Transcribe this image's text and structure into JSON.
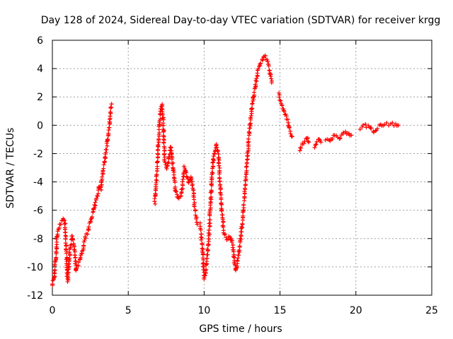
{
  "chart_data": {
    "type": "scatter",
    "title": "Day 128 of 2024, Sidereal Day-to-day VTEC variation (SDTVAR) for receiver krgg",
    "xlabel": "GPS time / hours",
    "ylabel": "SDTVAR / TECUs",
    "xlim": [
      0,
      25
    ],
    "ylim": [
      -12,
      6
    ],
    "xticks": [
      0,
      5,
      10,
      15,
      20,
      25
    ],
    "yticks": [
      -12,
      -10,
      -8,
      -6,
      -4,
      -2,
      0,
      2,
      4,
      6
    ],
    "grid": true,
    "marker": "+",
    "series": [
      {
        "name": "SDTVAR krgg",
        "color": "#ff0000",
        "segments": [
          [
            [
              0.0,
              -11.3
            ],
            [
              0.15,
              -10.5
            ],
            [
              0.3,
              -8.0
            ],
            [
              0.4,
              -7.3
            ],
            [
              0.6,
              -6.8
            ],
            [
              0.75,
              -6.6
            ],
            [
              0.85,
              -7.0
            ],
            [
              0.95,
              -9.5
            ],
            [
              1.0,
              -11.0
            ],
            [
              1.05,
              -10.5
            ],
            [
              1.15,
              -8.8
            ],
            [
              1.3,
              -7.8
            ],
            [
              1.45,
              -8.5
            ],
            [
              1.55,
              -10.2
            ],
            [
              1.65,
              -10.0
            ],
            [
              1.8,
              -9.6
            ],
            [
              1.95,
              -9.0
            ],
            [
              2.05,
              -8.6
            ],
            [
              2.15,
              -8.0
            ],
            [
              2.35,
              -7.5
            ],
            [
              2.45,
              -7.0
            ],
            [
              2.6,
              -6.5
            ],
            [
              2.75,
              -5.8
            ],
            [
              2.9,
              -5.2
            ],
            [
              3.0,
              -4.8
            ],
            [
              3.1,
              -4.3
            ],
            [
              3.2,
              -4.5
            ],
            [
              3.3,
              -3.5
            ],
            [
              3.45,
              -2.5
            ],
            [
              3.55,
              -1.8
            ],
            [
              3.65,
              -1.0
            ],
            [
              3.8,
              0.5
            ],
            [
              3.9,
              1.5
            ]
          ],
          [
            [
              6.75,
              -5.5
            ],
            [
              6.85,
              -4.0
            ],
            [
              7.0,
              -1.0
            ],
            [
              7.1,
              0.8
            ],
            [
              7.2,
              1.5
            ],
            [
              7.3,
              0.3
            ],
            [
              7.4,
              -2.5
            ],
            [
              7.55,
              -3.0
            ],
            [
              7.7,
              -2.2
            ],
            [
              7.8,
              -1.5
            ],
            [
              7.9,
              -2.5
            ],
            [
              8.0,
              -3.5
            ],
            [
              8.1,
              -4.5
            ],
            [
              8.3,
              -5.2
            ],
            [
              8.5,
              -5.0
            ],
            [
              8.6,
              -4.0
            ],
            [
              8.7,
              -3.0
            ],
            [
              8.8,
              -3.3
            ],
            [
              9.0,
              -4.0
            ],
            [
              9.15,
              -3.6
            ],
            [
              9.3,
              -4.8
            ],
            [
              9.4,
              -6.0
            ],
            [
              9.55,
              -7.0
            ]
          ],
          [
            [
              9.75,
              -7.0
            ],
            [
              9.9,
              -9.0
            ],
            [
              10.0,
              -10.8
            ],
            [
              10.1,
              -10.5
            ],
            [
              10.2,
              -9.2
            ],
            [
              10.3,
              -8.2
            ],
            [
              10.4,
              -6.0
            ],
            [
              10.5,
              -4.0
            ],
            [
              10.6,
              -2.5
            ],
            [
              10.7,
              -1.8
            ],
            [
              10.8,
              -1.3
            ],
            [
              10.9,
              -1.8
            ],
            [
              11.0,
              -3.0
            ],
            [
              11.1,
              -5.0
            ],
            [
              11.2,
              -6.5
            ],
            [
              11.3,
              -7.5
            ],
            [
              11.5,
              -8.0
            ],
            [
              11.7,
              -7.8
            ],
            [
              11.9,
              -8.6
            ],
            [
              12.0,
              -9.8
            ],
            [
              12.1,
              -10.3
            ],
            [
              12.2,
              -9.5
            ],
            [
              12.35,
              -8.6
            ],
            [
              12.5,
              -7.0
            ],
            [
              12.65,
              -5.0
            ],
            [
              12.8,
              -3.0
            ],
            [
              12.95,
              -0.8
            ],
            [
              13.1,
              0.8
            ],
            [
              13.25,
              2.0
            ],
            [
              13.4,
              3.0
            ],
            [
              13.55,
              3.8
            ],
            [
              13.7,
              4.3
            ],
            [
              13.85,
              4.7
            ],
            [
              14.0,
              5.0
            ],
            [
              14.15,
              4.6
            ],
            [
              14.3,
              4.0
            ],
            [
              14.45,
              3.0
            ]
          ],
          [
            [
              14.9,
              2.2
            ],
            [
              15.1,
              1.5
            ],
            [
              15.3,
              0.8
            ],
            [
              15.5,
              0.3
            ],
            [
              15.65,
              -0.4
            ],
            [
              15.8,
              -0.8
            ]
          ],
          [
            [
              16.3,
              -1.8
            ],
            [
              16.5,
              -1.3
            ],
            [
              16.8,
              -0.9
            ],
            [
              16.9,
              -1.2
            ]
          ],
          [
            [
              17.3,
              -1.5
            ],
            [
              17.5,
              -1.0
            ],
            [
              17.7,
              -1.2
            ]
          ],
          [
            [
              18.0,
              -1.0
            ],
            [
              18.3,
              -1.2
            ],
            [
              18.6,
              -0.7
            ],
            [
              18.9,
              -0.9
            ],
            [
              19.2,
              -0.6
            ],
            [
              19.5,
              -0.5
            ],
            [
              19.7,
              -0.7
            ]
          ],
          [
            [
              20.3,
              -0.2
            ],
            [
              20.6,
              0.0
            ],
            [
              20.9,
              -0.1
            ],
            [
              21.2,
              -0.4
            ],
            [
              21.6,
              0.0
            ],
            [
              22.0,
              0.1
            ],
            [
              22.4,
              0.1
            ],
            [
              22.8,
              0.0
            ]
          ]
        ]
      }
    ]
  }
}
